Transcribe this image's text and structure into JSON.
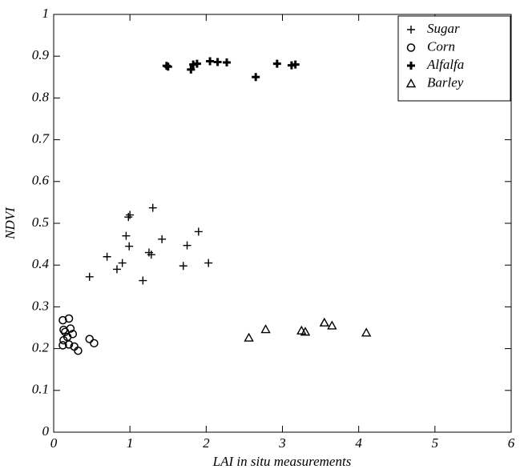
{
  "chart_data": {
    "type": "scatter",
    "xlabel": "LAI  in situ measurements",
    "ylabel": "NDVI",
    "xlim": [
      0,
      6
    ],
    "ylim": [
      0,
      1
    ],
    "xticks": [
      0,
      1,
      2,
      3,
      4,
      5,
      6
    ],
    "yticks": [
      0,
      0.1,
      0.2,
      0.3,
      0.4,
      0.5,
      0.6,
      0.7,
      0.8,
      0.9,
      1
    ],
    "legend": "upper right",
    "series": [
      {
        "name": "Sugar",
        "color": "#000000",
        "marker": "plus",
        "x": [
          0.47,
          0.7,
          0.83,
          0.9,
          0.95,
          0.98,
          1.0,
          0.99,
          1.17,
          1.25,
          1.28,
          1.3,
          1.42,
          1.7,
          1.75,
          1.9,
          2.03
        ],
        "values": [
          0.372,
          0.42,
          0.39,
          0.405,
          0.47,
          0.515,
          0.52,
          0.445,
          0.363,
          0.43,
          0.425,
          0.537,
          0.462,
          0.398,
          0.447,
          0.48,
          0.405
        ]
      },
      {
        "name": "Corn",
        "color": "#000000",
        "marker": "circle",
        "x": [
          0.12,
          0.13,
          0.15,
          0.13,
          0.12,
          0.2,
          0.22,
          0.18,
          0.25,
          0.2,
          0.27,
          0.32,
          0.47,
          0.53
        ],
        "values": [
          0.268,
          0.245,
          0.24,
          0.22,
          0.208,
          0.272,
          0.248,
          0.228,
          0.235,
          0.21,
          0.205,
          0.195,
          0.223,
          0.213
        ]
      },
      {
        "name": "Alfalfa",
        "color": "#000000",
        "marker": "bold-plus",
        "x": [
          1.5,
          1.48,
          1.8,
          1.83,
          1.88,
          2.05,
          2.15,
          2.27,
          2.65,
          2.93,
          3.12,
          3.17
        ],
        "values": [
          0.875,
          0.877,
          0.868,
          0.88,
          0.882,
          0.888,
          0.886,
          0.885,
          0.85,
          0.882,
          0.878,
          0.88
        ]
      },
      {
        "name": "Barley",
        "color": "#000000",
        "marker": "triangle",
        "x": [
          2.56,
          2.78,
          3.25,
          3.3,
          3.55,
          3.65,
          4.1
        ],
        "values": [
          0.226,
          0.246,
          0.243,
          0.24,
          0.262,
          0.255,
          0.238
        ]
      }
    ]
  }
}
